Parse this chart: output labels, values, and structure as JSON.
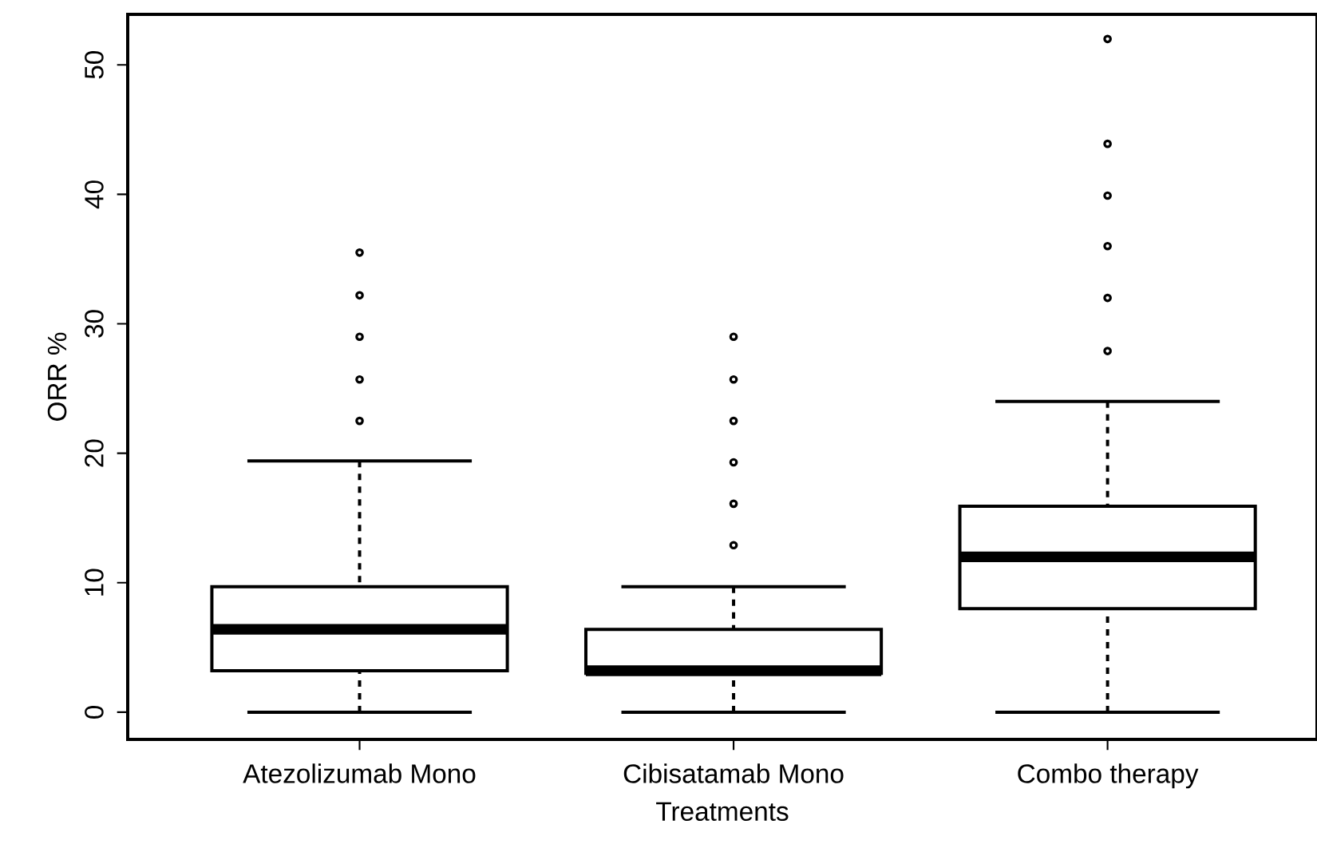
{
  "chart_data": {
    "type": "box",
    "xlabel": "Treatments",
    "ylabel": "ORR %",
    "categories": [
      "Atezolizumab Mono",
      "Cibisatamab Mono",
      "Combo therapy"
    ],
    "ylim": [
      -2.1,
      53.9
    ],
    "yticks": [
      0,
      10,
      20,
      30,
      40,
      50
    ],
    "boxes": [
      {
        "low": 0,
        "q1": 3.2,
        "median": 6.4,
        "q3": 9.7,
        "high": 19.4,
        "outliers": [
          22.5,
          25.7,
          29.0,
          32.2,
          35.5
        ]
      },
      {
        "low": 0,
        "q1": 3.0,
        "median": 3.2,
        "q3": 6.4,
        "high": 9.7,
        "outliers": [
          12.9,
          16.1,
          19.3,
          22.5,
          25.7,
          29.0
        ]
      },
      {
        "low": 0,
        "q1": 8.0,
        "median": 12.0,
        "q3": 15.9,
        "high": 24.0,
        "outliers": [
          27.9,
          32.0,
          36.0,
          39.9,
          43.9,
          52.0
        ]
      }
    ]
  }
}
